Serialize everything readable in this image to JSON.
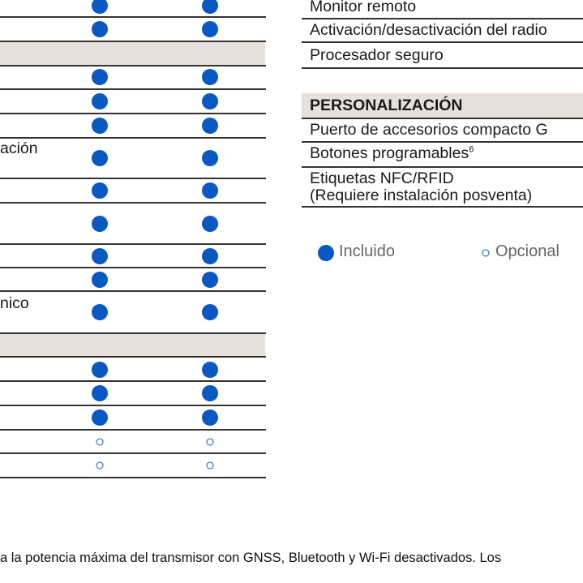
{
  "left_table": {
    "partial_labels": [
      "ación",
      "nico"
    ]
  },
  "right_table": {
    "rows": [
      {
        "label": "Monitor remoto"
      },
      {
        "label": "Activación/desactivación del radio"
      },
      {
        "label": "Procesador seguro"
      }
    ],
    "section_header": "PERSONALIZACIÓN",
    "section_rows": [
      {
        "label": "Puerto de accesorios compacto G"
      },
      {
        "label": "Botones programables",
        "sup": "6"
      },
      {
        "label_line1": "Etiquetas NFC/RFID",
        "label_line2": "(Requiere instalación posventa)"
      }
    ]
  },
  "legend": {
    "included_label": "Incluido",
    "optional_label": "Opcional"
  },
  "footnote": "a la potencia máxima del transmisor con GNSS, Bluetooth y Wi-Fi desactivados. Los",
  "colors": {
    "accent": "#0a58c2",
    "band": "#e6e1dc"
  }
}
